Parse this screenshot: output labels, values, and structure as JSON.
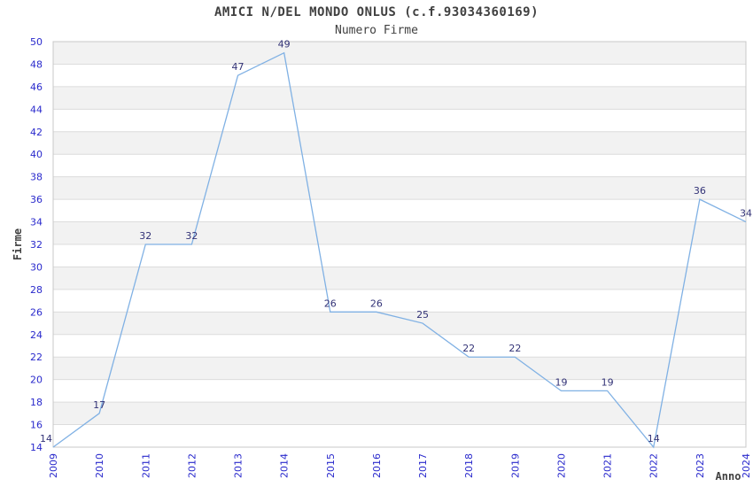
{
  "chart": {
    "title": "AMICI N/DEL MONDO ONLUS (c.f.93034360169)",
    "subtitle": "Numero Firme",
    "ylabel": "Firme",
    "xlabel": "Anno"
  },
  "chart_data": {
    "type": "line",
    "title": "AMICI N/DEL MONDO ONLUS (c.f.93034360169)",
    "subtitle": "Numero Firme",
    "xlabel": "Anno",
    "ylabel": "Firme",
    "x": [
      2009,
      2010,
      2011,
      2012,
      2013,
      2014,
      2015,
      2016,
      2017,
      2018,
      2019,
      2020,
      2021,
      2022,
      2023,
      2024
    ],
    "values": [
      14,
      17,
      32,
      32,
      47,
      49,
      26,
      26,
      25,
      22,
      22,
      19,
      19,
      14,
      36,
      34
    ],
    "ylim": [
      14,
      50
    ],
    "ytick_step": 2,
    "grid": true,
    "legend": "none",
    "colors": {
      "line": "#80b1e4",
      "tick_label": "#2929cc",
      "data_label": "#333377",
      "band": "#f2f2f2",
      "gridline": "#dcdcdc",
      "border": "#c8c8c8",
      "title": "#404040"
    }
  }
}
